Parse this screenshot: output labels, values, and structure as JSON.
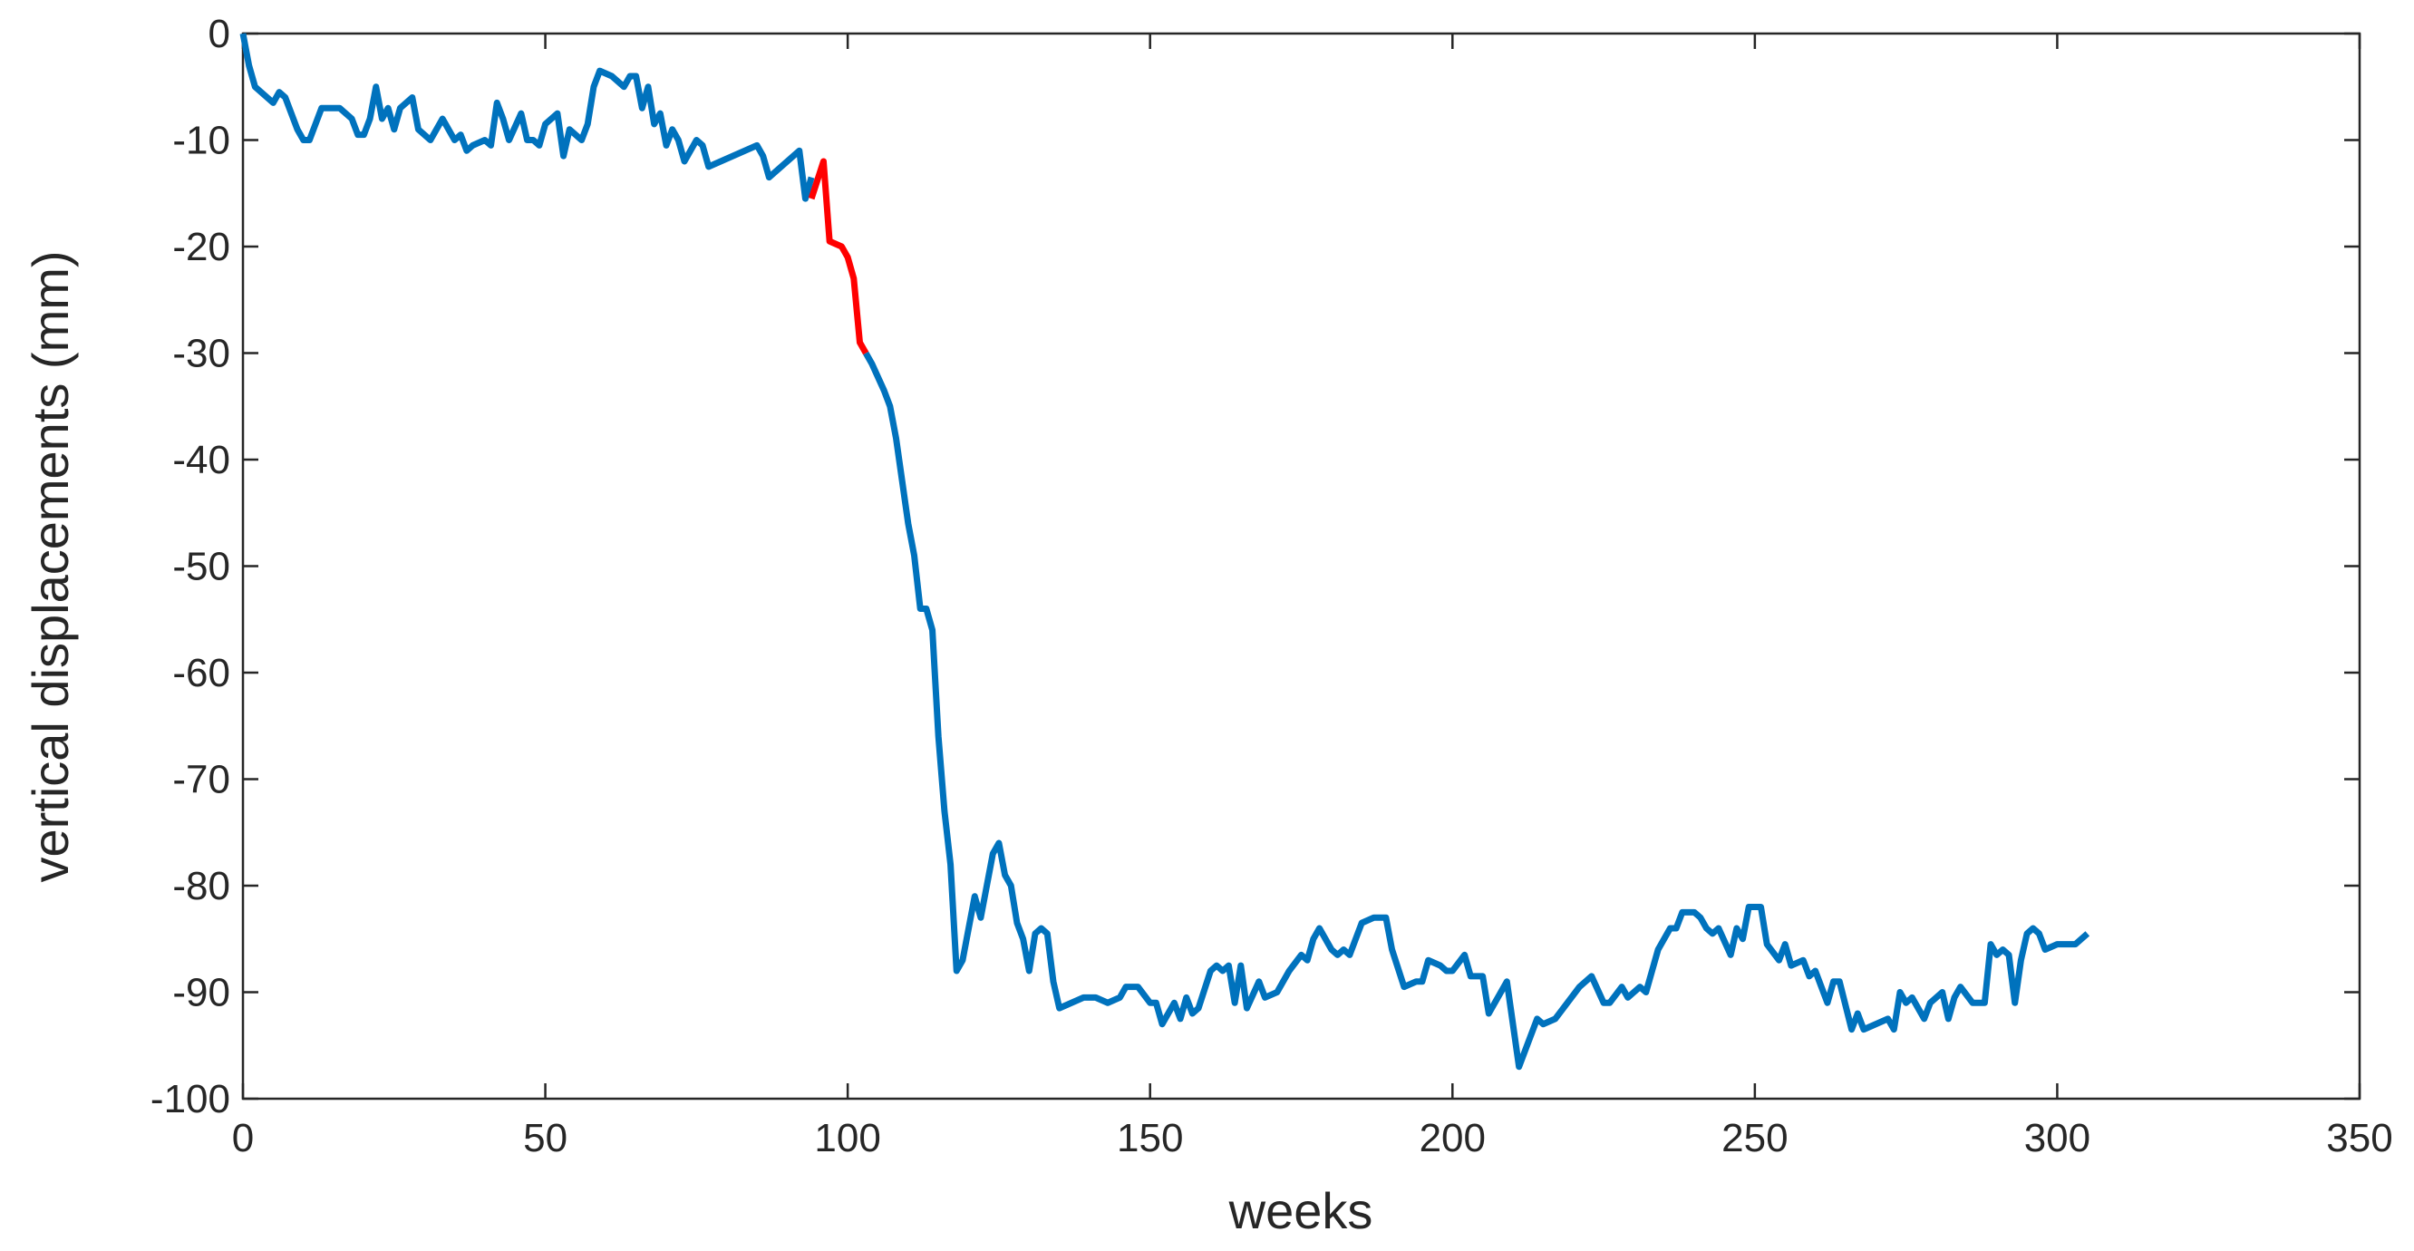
{
  "chart_data": {
    "type": "line",
    "xlabel": "weeks",
    "ylabel": "vertical displacements (mm)",
    "xlim": [
      0,
      350
    ],
    "xticks": [
      0,
      50,
      100,
      150,
      200,
      250,
      300,
      350
    ],
    "ylim": [
      -100,
      0
    ],
    "yticks": [
      0,
      -10,
      -20,
      -30,
      -40,
      -50,
      -60,
      -70,
      -80,
      -90,
      -100
    ],
    "series": [
      {
        "color": "#0072bd",
        "x": [
          0,
          1,
          2,
          4,
          5,
          6,
          7,
          9,
          10,
          11,
          13,
          16,
          18,
          19,
          20,
          21,
          22,
          23,
          24,
          25,
          26,
          28,
          29,
          31,
          33,
          35,
          36,
          37,
          38,
          40,
          41,
          42,
          43,
          44,
          46,
          47,
          48,
          49,
          50,
          52,
          53,
          54,
          55,
          56,
          57,
          58,
          59,
          61,
          62,
          63,
          64,
          65,
          66,
          67,
          68,
          69,
          70,
          71,
          72,
          73,
          75,
          76,
          77,
          85,
          86,
          87,
          90,
          92,
          93,
          94,
          null,
          103,
          104,
          106,
          107,
          108,
          109,
          110,
          111,
          112,
          113,
          114,
          115,
          116,
          117,
          118,
          119,
          120,
          121,
          122,
          123,
          124,
          125,
          126,
          127,
          128,
          129,
          130,
          131,
          132,
          133,
          134,
          135,
          137,
          139,
          141,
          143,
          145,
          146,
          148,
          150,
          151,
          152,
          154,
          155,
          156,
          157,
          158,
          160,
          161,
          162,
          163,
          164,
          165,
          166,
          168,
          169,
          171,
          173,
          175,
          176,
          177,
          178,
          180,
          181,
          182,
          183,
          185,
          187,
          189,
          190,
          192,
          194,
          195,
          196,
          198,
          199,
          200,
          202,
          203,
          205,
          206,
          207,
          209,
          211,
          212,
          214,
          215,
          217,
          219,
          221,
          223,
          225,
          226,
          228,
          229,
          231,
          232,
          234,
          236,
          237,
          238,
          240,
          241,
          242,
          243,
          244,
          246,
          247,
          248,
          249,
          251,
          252,
          254,
          255,
          256,
          258,
          259,
          260,
          262,
          263,
          264,
          266,
          267,
          268,
          270,
          272,
          273,
          274,
          275,
          276,
          278,
          279,
          281,
          282,
          283,
          284,
          286,
          288,
          289,
          290,
          291,
          292,
          293,
          294,
          295,
          296,
          297,
          298,
          300,
          303,
          305
        ],
        "values": [
          0,
          -3,
          -5,
          -6,
          -6.5,
          -5.5,
          -6,
          -9,
          -10,
          -10,
          -7,
          -7,
          -8,
          -9.5,
          -9.5,
          -8,
          -5,
          -8,
          -7,
          -9,
          -7,
          -6,
          -9,
          -10,
          -8,
          -10,
          -9.5,
          -11,
          -10.5,
          -10,
          -10.5,
          -6.5,
          -8,
          -10,
          -7.5,
          -10,
          -10,
          -10.5,
          -8.5,
          -7.5,
          -11.5,
          -9,
          -9.5,
          -10,
          -8.5,
          -5,
          -3.5,
          -4,
          -4.5,
          -5,
          -4,
          -4,
          -7,
          -5,
          -8.5,
          -7.5,
          -10.5,
          -9,
          -10,
          -12,
          -10,
          -10.5,
          -12.5,
          -10.5,
          -11.5,
          -13.5,
          -12,
          -11,
          -15.5,
          -13.5,
          null,
          -30,
          -31,
          -33.5,
          -35,
          -38,
          -42,
          -46,
          -49,
          -54,
          -54,
          -56,
          -66,
          -73,
          -78,
          -88,
          -87,
          -84,
          -81,
          -83,
          -80,
          -77,
          -76,
          -79,
          -80,
          -83.5,
          -85,
          -88,
          -84.5,
          -84,
          -84.5,
          -89,
          -91.5,
          -91,
          -90.5,
          -90.5,
          -91,
          -90.5,
          -89.5,
          -89.5,
          -91,
          -91,
          -93,
          -91,
          -92.5,
          -90.5,
          -92,
          -91.5,
          -88,
          -87.5,
          -88,
          -87.5,
          -91,
          -87.5,
          -91.5,
          -89,
          -90.5,
          -90,
          -88,
          -86.5,
          -87,
          -85,
          -84,
          -86,
          -86.5,
          -86,
          -86.5,
          -83.5,
          -83,
          -83,
          -86,
          -89.5,
          -89,
          -89,
          -87,
          -87.5,
          -88,
          -88,
          -86.5,
          -88.5,
          -88.5,
          -92,
          -91,
          -89,
          -97,
          -95.5,
          -92.5,
          -93,
          -92.5,
          -91,
          -89.5,
          -88.5,
          -91,
          -91,
          -89.5,
          -90.5,
          -89.5,
          -90,
          -86,
          -84,
          -84,
          -82.5,
          -82.5,
          -83,
          -84,
          -84.5,
          -84,
          -86.5,
          -84,
          -85,
          -82,
          -82,
          -85.5,
          -87,
          -85.5,
          -87.5,
          -87,
          -88.5,
          -88,
          -91,
          -89,
          -89,
          -93.5,
          -92,
          -93.5,
          -93,
          -92.5,
          -93.5,
          -90,
          -91,
          -90.5,
          -92.5,
          -91,
          -90,
          -92.5,
          -90.5,
          -89.5,
          -91,
          -91,
          -85.5,
          -86.5,
          -86,
          -86.5,
          -91,
          -87,
          -84.5,
          -84,
          -84.5,
          -86,
          -85.5,
          -85.5,
          -84.5
        ]
      },
      {
        "color": "#ff0000",
        "x": [
          94,
          96,
          97,
          99,
          100,
          101,
          102,
          103
        ],
        "values": [
          -15.5,
          -12,
          -19.5,
          -20,
          -21,
          -23,
          -29,
          -30
        ]
      }
    ]
  }
}
